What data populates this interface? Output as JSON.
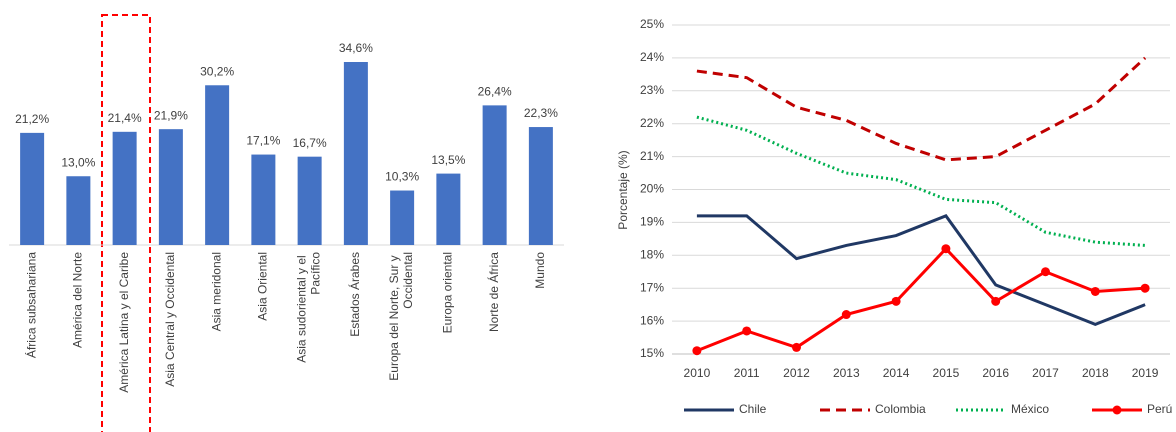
{
  "chart_data": [
    {
      "type": "bar",
      "categories": [
        "África subsahariana",
        "América del Norte",
        "América Latina y el Caribe",
        "Asia Central y Occidental",
        "Asia meridonal",
        "Asia Oriental",
        "Asia sudoriental y el Pacífico",
        "Estados Árabes",
        "Europa del Norte, Sur y Occidental",
        "Europa oriental",
        "Norte de África",
        "Mundo"
      ],
      "values": [
        21.2,
        13.0,
        21.4,
        21.9,
        30.2,
        17.1,
        16.7,
        34.6,
        10.3,
        13.5,
        26.4,
        22.3
      ],
      "value_labels": [
        "21,2%",
        "13,0%",
        "21,4%",
        "21,9%",
        "30,2%",
        "17,1%",
        "16,7%",
        "34,6%",
        "10,3%",
        "13,5%",
        "26,4%",
        "22,3%"
      ],
      "color": "#4472c4"
    },
    {
      "type": "line",
      "y_label": "Porcentaje (%)",
      "x": [
        "2010",
        "2011",
        "2012",
        "2013",
        "2014",
        "2015",
        "2016",
        "2017",
        "2018",
        "2019"
      ],
      "ylim": [
        15,
        25
      ],
      "yticks": [
        {
          "value": 15,
          "label": "15%"
        },
        {
          "value": 16,
          "label": "16%"
        },
        {
          "value": 17,
          "label": "17%"
        },
        {
          "value": 18,
          "label": "18%"
        },
        {
          "value": 19,
          "label": "19%"
        },
        {
          "value": 20,
          "label": "20%"
        },
        {
          "value": 21,
          "label": "21%"
        },
        {
          "value": 22,
          "label": "22%"
        },
        {
          "value": 23,
          "label": "23%"
        },
        {
          "value": 24,
          "label": "24%"
        },
        {
          "value": 25,
          "label": "25%"
        }
      ],
      "grid": true,
      "legend": "bottom",
      "series": [
        {
          "name": "Chile",
          "color": "#203864",
          "style": "solid",
          "values": [
            19.2,
            19.2,
            17.9,
            18.3,
            18.6,
            19.2,
            17.1,
            16.5,
            15.9,
            16.5
          ]
        },
        {
          "name": "Colombia",
          "color": "#c00000",
          "style": "dashed",
          "values": [
            23.6,
            23.4,
            22.5,
            22.1,
            21.4,
            20.9,
            21.0,
            21.8,
            22.6,
            24.0
          ]
        },
        {
          "name": "México",
          "color": "#00b050",
          "style": "dotted",
          "values": [
            22.2,
            21.8,
            21.1,
            20.5,
            20.3,
            19.7,
            19.6,
            18.7,
            18.4,
            18.3
          ]
        },
        {
          "name": "Perú",
          "color": "#ff0000",
          "style": "solid",
          "marker": true,
          "values": [
            15.1,
            15.7,
            15.2,
            16.2,
            16.6,
            18.2,
            16.6,
            17.5,
            16.9,
            17.0
          ]
        }
      ]
    }
  ]
}
